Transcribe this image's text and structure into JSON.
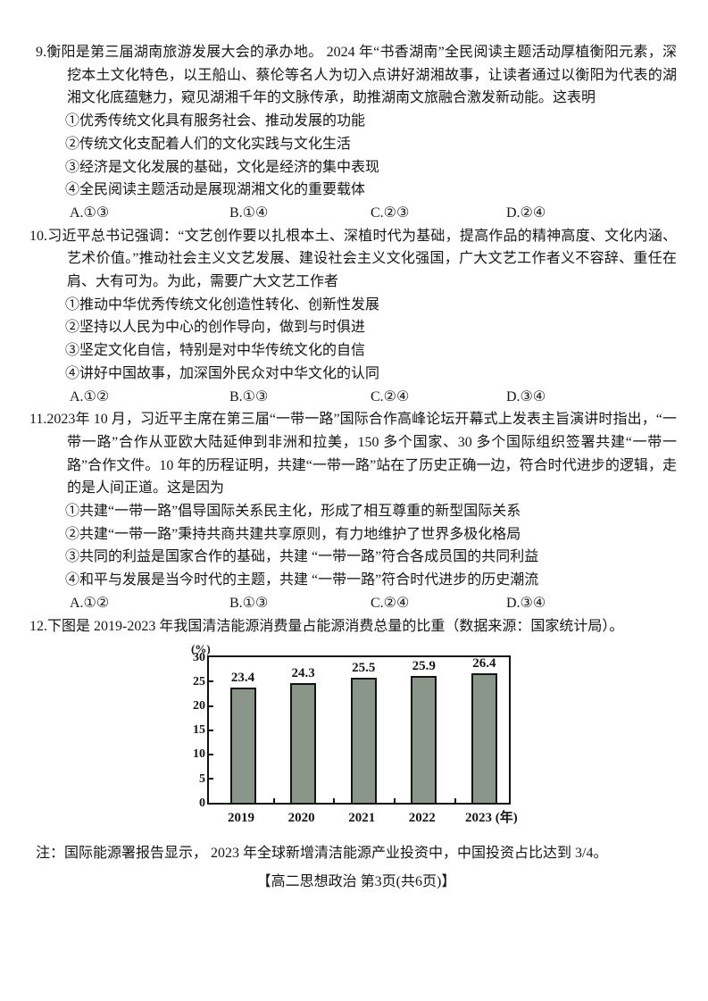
{
  "questions": [
    {
      "number": "9.",
      "stem": "衡阳是第三届湖南旅游发展大会的承办地。 2024 年“书香湖南”全民阅读主题活动厚植衡阳元素，深挖本土文化特色，以王船山、蔡伦等名人为切入点讲好湖湘故事，让读者通过以衡阳为代表的湖湘文化底蕴魅力，窥见湖湘千年的文脉传承，助推湖南文旅融合激发新动能。这表明",
      "options": [
        "①优秀传统文化具有服务社会、推动发展的功能",
        "②传统文化支配着人们的文化实践与文化生活",
        "③经济是文化发展的基础，文化是经济的集中表现",
        "④全民阅读主题活动是展现湖湘文化的重要载体"
      ],
      "choices": [
        "A.①③",
        "B.①④",
        "C.②③",
        "D.②④"
      ]
    },
    {
      "number": "10.",
      "stem": "习近平总书记强调：“文艺创作要以扎根本土、深植时代为基础，提高作品的精神高度、文化内涵、艺术价值。”推动社会主义文艺发展、建设社会主义文化强国，广大文艺工作者义不容辞、重任在肩、大有可为。为此，需要广大文艺工作者",
      "options": [
        "①推动中华优秀传统文化创造性转化、创新性发展",
        "②坚持以人民为中心的创作导向，做到与时俱进",
        "③坚定文化自信，特别是对中华传统文化的自信",
        "④讲好中国故事，加深国外民众对中华文化的认同"
      ],
      "choices": [
        "A.①②",
        "B.①③",
        "C.②④",
        "D.③④"
      ]
    },
    {
      "number": "11.",
      "stem": "2023年 10 月，习近平主席在第三届“一带一路”国际合作高峰论坛开幕式上发表主旨演讲时指出，“一带一路”合作从亚欧大陆延伸到非洲和拉美，150 多个国家、30 多个国际组织签署共建“一带一路”合作文件。10 年的历程证明，共建“一带一路”站在了历史正确一边，符合时代进步的逻辑，走的是人间正道。这是因为",
      "options": [
        "①共建“一带一路”倡导国际关系民主化，形成了相互尊重的新型国际关系",
        "②共建“一带一路”秉持共商共建共享原则，有力地维护了世界多极化格局",
        "③共同的利益是国家合作的基础，共建 “一带一路”符合各成员国的共同利益",
        "④和平与发展是当今时代的主题，共建 “一带一路”符合时代进步的历史潮流"
      ],
      "choices": [
        "A.①②",
        "B.①③",
        "C.②④",
        "D.③④"
      ]
    },
    {
      "number": "12.",
      "stem": "下图是 2019-2023 年我国清洁能源消费量占能源消费总量的比重（数据来源：国家统计局）。"
    }
  ],
  "chart_data": {
    "type": "bar",
    "title": "2019-2023年我国清洁能源消费量占能源消费总量的比重",
    "unit_label": "(%)",
    "categories": [
      "2019",
      "2020",
      "2021",
      "2022",
      "2023"
    ],
    "x_axis_suffix": "(年)",
    "values": [
      23.4,
      24.3,
      25.5,
      25.9,
      26.4
    ],
    "ylim": [
      0,
      30
    ],
    "yticks": [
      0,
      5,
      10,
      15,
      20,
      25,
      30
    ],
    "bar_color": "#8b968a",
    "grid": false,
    "data_labels": true,
    "legend": "none"
  },
  "note": "注：国际能源署报告显示， 2023 年全球新增清洁能源产业投资中，中国投资占比达到  3/4。",
  "footer": "【高二思想政治 第3页(共6页)】"
}
